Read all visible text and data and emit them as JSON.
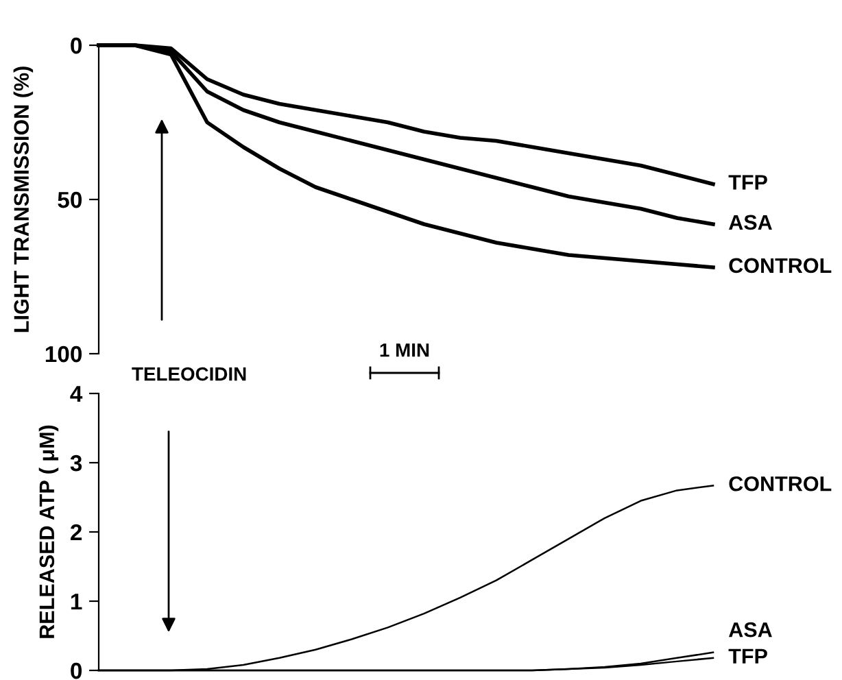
{
  "chart_data": [
    {
      "type": "line",
      "ylabel": "LIGHT TRANSMISSION (%)",
      "categories": [
        null,
        null,
        null,
        null,
        null,
        null,
        null,
        null,
        null,
        null,
        null,
        null,
        null,
        null,
        null,
        null,
        null,
        null
      ],
      "ylim": [
        100,
        0
      ],
      "yticks": [
        0,
        50,
        100
      ],
      "tick_labels": "y",
      "grid": false,
      "legend": false,
      "marker": "none",
      "line_style": "solid",
      "annotations": [
        "1 MIN",
        "TELEOCIDIN"
      ],
      "series": [
        {
          "name": "TFP",
          "color": "#000000",
          "values": [
            0,
            0,
            1,
            11,
            16,
            19,
            21,
            23,
            25,
            28,
            30,
            31,
            33,
            35,
            37,
            39,
            42,
            45
          ]
        },
        {
          "name": "ASA",
          "color": "#000000",
          "values": [
            0,
            0,
            2,
            15,
            21,
            25,
            28,
            31,
            34,
            37,
            40,
            43,
            46,
            49,
            51,
            53,
            56,
            58
          ]
        },
        {
          "name": "CONTROL",
          "color": "#000000",
          "values": [
            0,
            0,
            3,
            25,
            33,
            40,
            46,
            50,
            54,
            58,
            61,
            64,
            66,
            68,
            69,
            70,
            71,
            72
          ]
        }
      ]
    },
    {
      "type": "line",
      "ylabel": "RELEASED ATP ( μM)",
      "categories": [
        null,
        null,
        null,
        null,
        null,
        null,
        null,
        null,
        null,
        null,
        null,
        null,
        null,
        null,
        null,
        null,
        null,
        null
      ],
      "ylim": [
        0,
        4
      ],
      "yticks": [
        0,
        1,
        2,
        3,
        4
      ],
      "tick_labels": "y",
      "grid": false,
      "legend": false,
      "marker": "none",
      "line_style": "solid",
      "series": [
        {
          "name": "CONTROL",
          "color": "#000000",
          "values": [
            0,
            0,
            0,
            0.02,
            0.08,
            0.18,
            0.3,
            0.45,
            0.62,
            0.82,
            1.05,
            1.3,
            1.6,
            1.9,
            2.2,
            2.45,
            2.6,
            2.67
          ]
        },
        {
          "name": "ASA",
          "color": "#000000",
          "values": [
            0,
            0,
            0,
            0,
            0,
            0,
            0,
            0,
            0,
            0,
            0,
            0,
            0,
            0.02,
            0.05,
            0.1,
            0.18,
            0.26
          ]
        },
        {
          "name": "TFP",
          "color": "#000000",
          "values": [
            0,
            0,
            0,
            0,
            0,
            0,
            0,
            0,
            0,
            0,
            0,
            0,
            0,
            0.02,
            0.04,
            0.08,
            0.13,
            0.18
          ]
        }
      ]
    }
  ]
}
